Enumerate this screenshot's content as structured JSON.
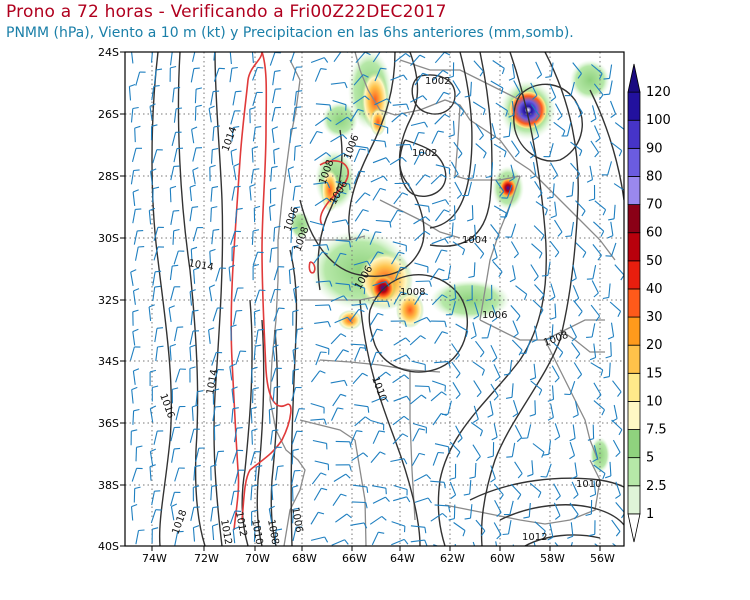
{
  "title": "Prono a 72 horas - Verificando a Fri00Z22DEC2017",
  "subtitle": "PNMM (hPa), Viento a 10 m (kt) y Precipitacion en las 6hs anteriores (mm,somb).",
  "colors": {
    "title": "#b0001e",
    "subtitle": "#1a7fa8",
    "isobar": "#333333",
    "isobar_1014": "#e03a3a",
    "barb": "#1f7fc0",
    "border": "#8a8a8a"
  },
  "lat_labels": [
    "24S",
    "26S",
    "28S",
    "30S",
    "32S",
    "34S",
    "36S",
    "38S",
    "40S"
  ],
  "lon_labels": [
    "74W",
    "72W",
    "70W",
    "68W",
    "66W",
    "64W",
    "62W",
    "60W",
    "58W",
    "56W"
  ],
  "isobar_labels": [
    "1002",
    "1002",
    "1014",
    "1006",
    "1008",
    "1006",
    "1004",
    "1014",
    "1006",
    "1008",
    "1006",
    "1008",
    "1006",
    "1016",
    "1014",
    "1008",
    "1010",
    "1012",
    "1010",
    "1012",
    "1006",
    "1018",
    "1008",
    "1012",
    "1010"
  ],
  "colorbar": {
    "levels": [
      "1",
      "2.5",
      "5",
      "7.5",
      "10",
      "15",
      "20",
      "30",
      "40",
      "50",
      "60",
      "70",
      "80",
      "90",
      "100",
      "120"
    ],
    "colors": [
      "#ffffff",
      "#dff5d8",
      "#b6e8a8",
      "#8fd27e",
      "#fff8c4",
      "#ffe98a",
      "#ffc24a",
      "#ff9a1c",
      "#ff5a1a",
      "#e81e0e",
      "#b8000c",
      "#8a0016",
      "#9a88ee",
      "#6b5ce0",
      "#4634c8",
      "#22119e",
      "#1a0a80"
    ]
  },
  "precip_levels_legend_unit": "mm"
}
